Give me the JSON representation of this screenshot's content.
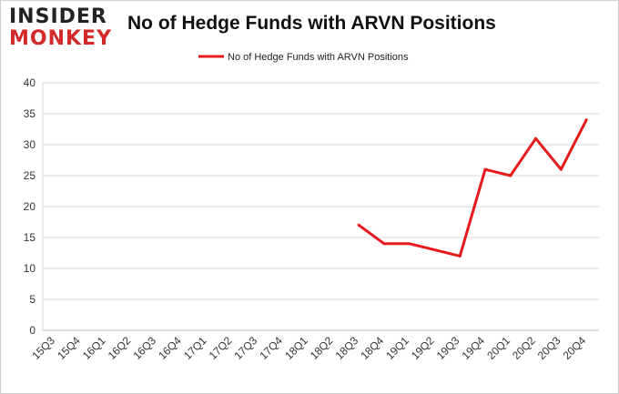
{
  "logo": {
    "line1": "INSIDER",
    "line2": "MONKEY"
  },
  "chart_data": {
    "type": "line",
    "title": "No of Hedge Funds with ARVN Positions",
    "xlabel": "",
    "ylabel": "",
    "categories": [
      "15Q3",
      "15Q4",
      "16Q1",
      "16Q2",
      "16Q3",
      "16Q4",
      "17Q1",
      "17Q2",
      "17Q3",
      "17Q4",
      "18Q1",
      "18Q2",
      "18Q3",
      "18Q4",
      "19Q1",
      "19Q2",
      "19Q3",
      "19Q4",
      "20Q1",
      "20Q2",
      "20Q3",
      "20Q4"
    ],
    "series": [
      {
        "name": "No of Hedge Funds with ARVN Positions",
        "color": "#e8191c",
        "values": [
          null,
          null,
          null,
          null,
          null,
          null,
          null,
          null,
          null,
          null,
          null,
          null,
          17,
          14,
          14,
          13,
          12,
          26,
          25,
          31,
          26,
          34
        ]
      }
    ],
    "ylim": [
      0,
      40
    ],
    "yticks": [
      0,
      5,
      10,
      15,
      20,
      25,
      30,
      35,
      40
    ],
    "grid": true,
    "legend": "top-center"
  }
}
